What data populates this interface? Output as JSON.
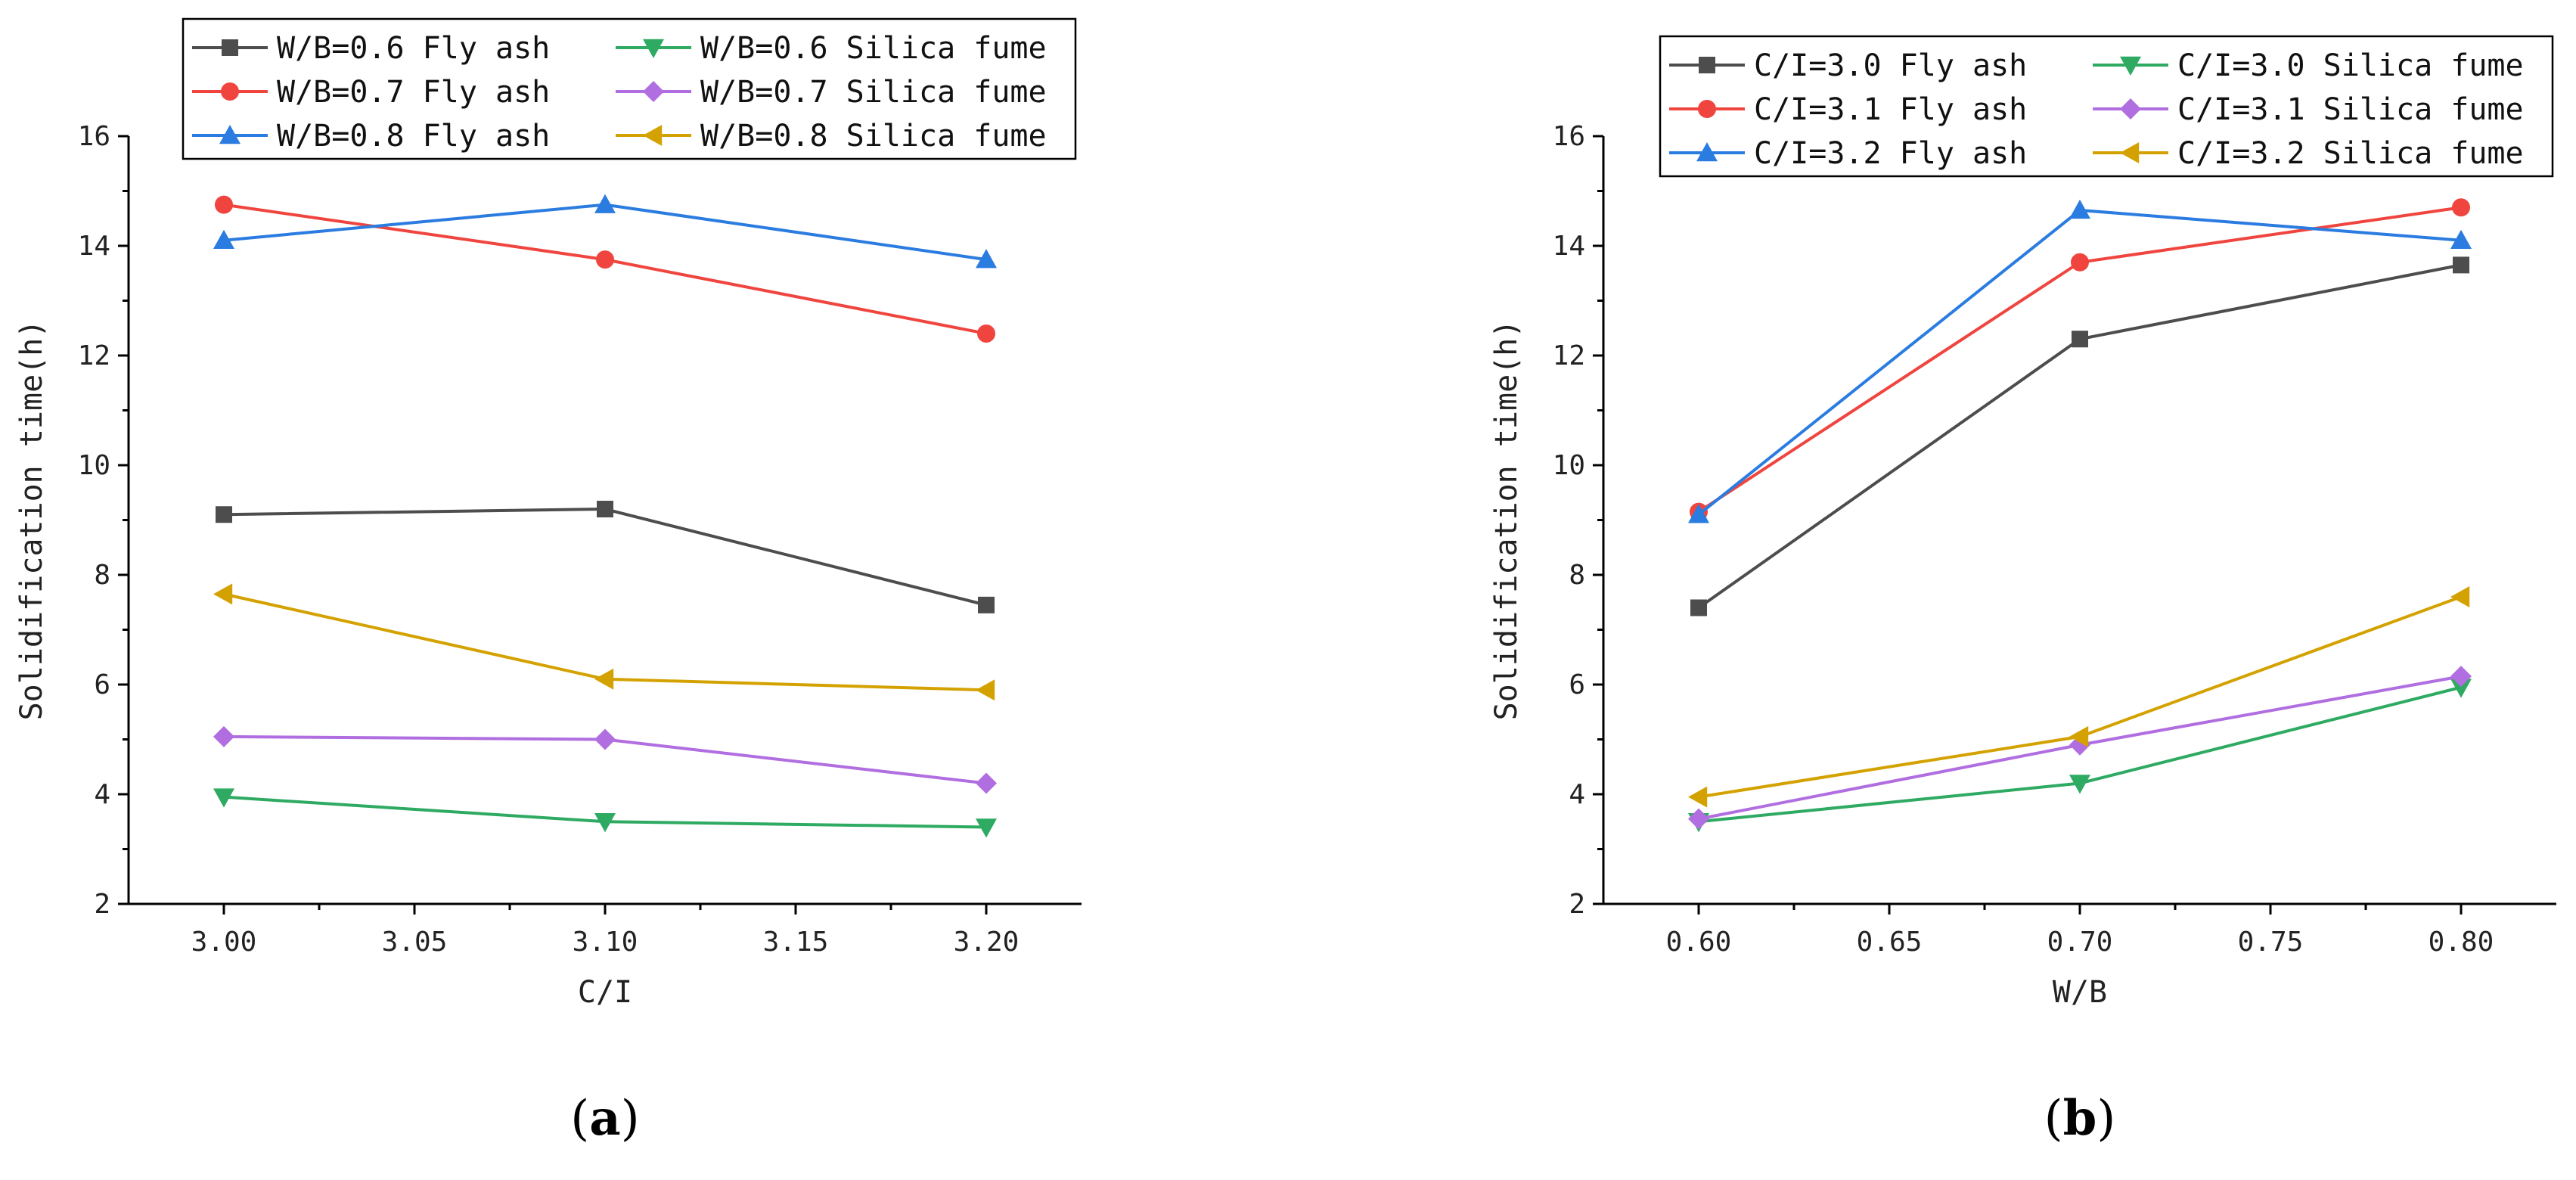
{
  "chart_data": [
    {
      "type": "line",
      "panel_label": "a",
      "xlabel": "C/I",
      "ylabel": "Solidification time(h)",
      "xlim": [
        2.975,
        3.225
      ],
      "ylim": [
        2,
        16
      ],
      "xticks": [
        3.0,
        3.05,
        3.1,
        3.15,
        3.2
      ],
      "xtick_labels": [
        "3.00",
        "3.05",
        "3.10",
        "3.15",
        "3.20"
      ],
      "yticks": [
        2,
        4,
        6,
        8,
        10,
        12,
        14,
        16
      ],
      "ytick_labels": [
        "2",
        "4",
        "6",
        "8",
        "10",
        "12",
        "14",
        "16"
      ],
      "legend_position": "top-center",
      "x": [
        3.0,
        3.1,
        3.2
      ],
      "series": [
        {
          "name": "W/B=0.6 Fly ash",
          "values": [
            9.1,
            9.2,
            7.45
          ],
          "color": "#4d4d4d",
          "marker": "square"
        },
        {
          "name": "W/B=0.7 Fly ash",
          "values": [
            14.75,
            13.75,
            12.4
          ],
          "color": "#f0453f",
          "marker": "circle"
        },
        {
          "name": "W/B=0.8 Fly ash",
          "values": [
            14.1,
            14.75,
            13.75
          ],
          "color": "#2b7ce0",
          "marker": "triangle-up"
        },
        {
          "name": "W/B=0.6 Silica fume",
          "values": [
            3.95,
            3.5,
            3.4
          ],
          "color": "#2eaa62",
          "marker": "triangle-down"
        },
        {
          "name": "W/B=0.7 Silica fume",
          "values": [
            5.05,
            5.0,
            4.2
          ],
          "color": "#b06ee0",
          "marker": "diamond"
        },
        {
          "name": "W/B=0.8 Silica fume",
          "values": [
            7.65,
            6.1,
            5.9
          ],
          "color": "#d4a200",
          "marker": "triangle-left"
        }
      ]
    },
    {
      "type": "line",
      "panel_label": "b",
      "xlabel": "W/B",
      "ylabel": "Solidification time(h)",
      "xlim": [
        0.575,
        0.825
      ],
      "ylim": [
        2,
        16
      ],
      "xticks": [
        0.6,
        0.65,
        0.7,
        0.75,
        0.8
      ],
      "xtick_labels": [
        "0.60",
        "0.65",
        "0.70",
        "0.75",
        "0.80"
      ],
      "yticks": [
        2,
        4,
        6,
        8,
        10,
        12,
        14,
        16
      ],
      "ytick_labels": [
        "2",
        "4",
        "6",
        "8",
        "10",
        "12",
        "14",
        "16"
      ],
      "legend_position": "top-right",
      "x": [
        0.6,
        0.7,
        0.8
      ],
      "series": [
        {
          "name": "C/I=3.0 Fly ash",
          "values": [
            7.4,
            12.3,
            13.65
          ],
          "color": "#4d4d4d",
          "marker": "square"
        },
        {
          "name": "C/I=3.1 Fly ash",
          "values": [
            9.15,
            13.7,
            14.7
          ],
          "color": "#f0453f",
          "marker": "circle"
        },
        {
          "name": "C/I=3.2 Fly ash",
          "values": [
            9.1,
            14.65,
            14.1
          ],
          "color": "#2b7ce0",
          "marker": "triangle-up"
        },
        {
          "name": "C/I=3.0 Silica fume",
          "values": [
            3.5,
            4.2,
            5.95
          ],
          "color": "#2eaa62",
          "marker": "triangle-down"
        },
        {
          "name": "C/I=3.1 Silica fume",
          "values": [
            3.55,
            4.9,
            6.15
          ],
          "color": "#b06ee0",
          "marker": "diamond"
        },
        {
          "name": "C/I=3.2 Silica fume",
          "values": [
            3.95,
            5.05,
            7.6
          ],
          "color": "#d4a200",
          "marker": "triangle-left"
        }
      ]
    }
  ]
}
